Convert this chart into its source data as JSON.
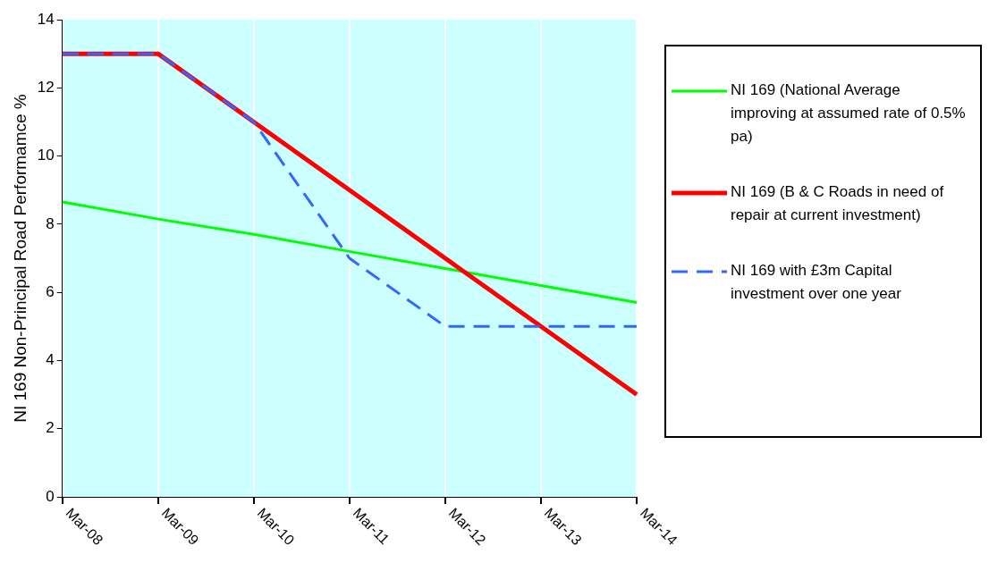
{
  "chart_data": {
    "type": "line",
    "ylabel": "NI 169 Non-Principal Road Performamce %",
    "categories": [
      "Mar-08",
      "Mar-09",
      "Mar-10",
      "Mar-11",
      "Mar-12",
      "Mar-13",
      "Mar-14"
    ],
    "series": [
      {
        "name": "NI 169 (National Average improving at assumed rate of 0.5% pa)",
        "color": "#00ff00",
        "values": [
          8.65,
          8.15,
          7.7,
          7.2,
          6.7,
          6.2,
          5.7
        ],
        "line_style": "solid"
      },
      {
        "name": "NI 169 (B & C Roads in need of repair at current investment)",
        "color": "#ff0000",
        "values": [
          13,
          13,
          11,
          9,
          7,
          5,
          3
        ],
        "line_style": "solid"
      },
      {
        "name": "NI 169 with £3m Capital investment over one year",
        "color": "#3366ff",
        "values": [
          13,
          13,
          11,
          7,
          5,
          5,
          5
        ],
        "line_style": "dashed"
      }
    ],
    "ylim": [
      0,
      14
    ],
    "yticks": [
      0,
      2,
      4,
      6,
      8,
      10,
      12,
      14
    ],
    "grid": "x",
    "legend": "right",
    "marker": "none"
  }
}
